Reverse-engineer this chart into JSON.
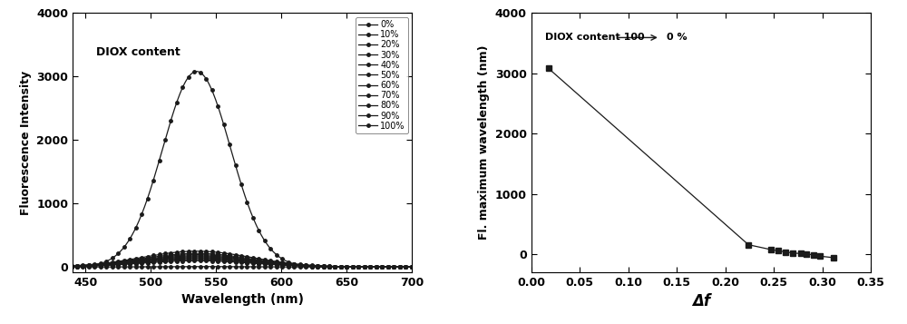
{
  "left": {
    "title_text": "DIOX content",
    "xlabel": "Wavelength (nm)",
    "ylabel": "Fluorescence Intensity",
    "xlim": [
      440,
      700
    ],
    "ylim": [
      -80,
      4000
    ],
    "xticks": [
      450,
      500,
      550,
      600,
      650,
      700
    ],
    "yticks": [
      0,
      1000,
      2000,
      3000,
      4000
    ],
    "legend_labels": [
      "0%",
      "10%",
      "20%",
      "30%",
      "40%",
      "50%",
      "60%",
      "70%",
      "80%",
      "90%",
      "100%"
    ],
    "markers": [
      "o",
      "D",
      "^",
      "s",
      "v",
      "s",
      "D",
      "o",
      "^",
      "s",
      "*"
    ],
    "peak_wavelength": 535,
    "peak_values": [
      3080,
      250,
      215,
      195,
      178,
      163,
      148,
      133,
      118,
      100,
      8
    ],
    "sigma_values": [
      26,
      42,
      42,
      42,
      42,
      42,
      42,
      42,
      42,
      42,
      40
    ]
  },
  "right": {
    "xlabel": "Δf",
    "ylabel": "Fl. maximum wavelength (nm)",
    "xlim": [
      0.0,
      0.35
    ],
    "ylim": [
      -300,
      4000
    ],
    "xticks": [
      0.0,
      0.05,
      0.1,
      0.15,
      0.2,
      0.25,
      0.3,
      0.35
    ],
    "yticks": [
      0,
      1000,
      2000,
      3000,
      4000
    ],
    "delta_f": [
      0.018,
      0.224,
      0.247,
      0.255,
      0.262,
      0.27,
      0.278,
      0.284,
      0.291,
      0.298,
      0.312
    ],
    "fl_max": [
      3080,
      155,
      75,
      55,
      35,
      18,
      8,
      2,
      -15,
      -35,
      -60
    ]
  },
  "bg_color": "#ffffff",
  "line_color": "#1a1a1a",
  "marker": "s",
  "markersize": 3,
  "linewidth": 0.9
}
